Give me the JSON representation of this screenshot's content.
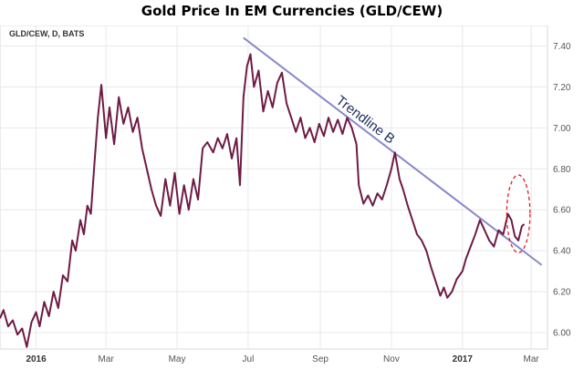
{
  "title": "Gold Price In EM Currencies (GLD/CEW)",
  "symbol_label": "GLD/CEW, D, BATS",
  "colors": {
    "series": "#6e1b45",
    "trendline": "#8888cc",
    "highlight": "#dd2222",
    "grid": "#e8e8e8",
    "axis_text": "#555555"
  },
  "chart_data": {
    "type": "line",
    "title": "Gold Price In EM Currencies (GLD/CEW)",
    "xlabel": "",
    "ylabel": "",
    "ylim": [
      5.92,
      7.5
    ],
    "xlim": [
      "2015-12-01",
      "2017-03-15"
    ],
    "grid": true,
    "y_axis_side": "right",
    "y_ticks": [
      "6.00",
      "6.20",
      "6.40",
      "6.60",
      "6.80",
      "7.00",
      "7.20",
      "7.40"
    ],
    "x_ticks": [
      {
        "label": "2016",
        "date": "2016-01-01",
        "bold": true
      },
      {
        "label": "Mar",
        "date": "2016-03-01",
        "bold": false
      },
      {
        "label": "May",
        "date": "2016-05-01",
        "bold": false
      },
      {
        "label": "Jul",
        "date": "2016-07-01",
        "bold": false
      },
      {
        "label": "Sep",
        "date": "2016-09-01",
        "bold": false
      },
      {
        "label": "Nov",
        "date": "2016-11-01",
        "bold": false
      },
      {
        "label": "2017",
        "date": "2017-01-01",
        "bold": true
      },
      {
        "label": "Mar",
        "date": "2017-03-01",
        "bold": false
      }
    ],
    "series": [
      {
        "points": [
          [
            "2015-12-01",
            6.07
          ],
          [
            "2015-12-04",
            6.11
          ],
          [
            "2015-12-08",
            6.03
          ],
          [
            "2015-12-12",
            6.06
          ],
          [
            "2015-12-16",
            5.99
          ],
          [
            "2015-12-20",
            6.02
          ],
          [
            "2015-12-24",
            5.93
          ],
          [
            "2015-12-28",
            6.05
          ],
          [
            "2016-01-01",
            6.1
          ],
          [
            "2016-01-04",
            6.03
          ],
          [
            "2016-01-08",
            6.15
          ],
          [
            "2016-01-12",
            6.08
          ],
          [
            "2016-01-16",
            6.2
          ],
          [
            "2016-01-20",
            6.12
          ],
          [
            "2016-01-24",
            6.28
          ],
          [
            "2016-01-28",
            6.25
          ],
          [
            "2016-02-01",
            6.45
          ],
          [
            "2016-02-04",
            6.4
          ],
          [
            "2016-02-08",
            6.55
          ],
          [
            "2016-02-11",
            6.48
          ],
          [
            "2016-02-14",
            6.62
          ],
          [
            "2016-02-17",
            6.58
          ],
          [
            "2016-02-20",
            6.82
          ],
          [
            "2016-02-23",
            7.05
          ],
          [
            "2016-02-26",
            7.21
          ],
          [
            "2016-03-01",
            6.95
          ],
          [
            "2016-03-04",
            7.1
          ],
          [
            "2016-03-08",
            6.92
          ],
          [
            "2016-03-12",
            7.15
          ],
          [
            "2016-03-16",
            7.02
          ],
          [
            "2016-03-20",
            7.1
          ],
          [
            "2016-03-24",
            6.98
          ],
          [
            "2016-03-28",
            7.05
          ],
          [
            "2016-04-01",
            6.9
          ],
          [
            "2016-04-05",
            6.8
          ],
          [
            "2016-04-09",
            6.7
          ],
          [
            "2016-04-13",
            6.62
          ],
          [
            "2016-04-17",
            6.57
          ],
          [
            "2016-04-21",
            6.75
          ],
          [
            "2016-04-25",
            6.62
          ],
          [
            "2016-04-29",
            6.78
          ],
          [
            "2016-05-03",
            6.58
          ],
          [
            "2016-05-07",
            6.72
          ],
          [
            "2016-05-11",
            6.6
          ],
          [
            "2016-05-15",
            6.75
          ],
          [
            "2016-05-19",
            6.65
          ],
          [
            "2016-05-23",
            6.9
          ],
          [
            "2016-05-27",
            6.93
          ],
          [
            "2016-06-01",
            6.88
          ],
          [
            "2016-06-05",
            6.95
          ],
          [
            "2016-06-09",
            6.9
          ],
          [
            "2016-06-13",
            6.97
          ],
          [
            "2016-06-17",
            6.85
          ],
          [
            "2016-06-21",
            6.95
          ],
          [
            "2016-06-24",
            6.72
          ],
          [
            "2016-06-27",
            7.15
          ],
          [
            "2016-06-30",
            7.3
          ],
          [
            "2016-07-03",
            7.36
          ],
          [
            "2016-07-06",
            7.2
          ],
          [
            "2016-07-10",
            7.28
          ],
          [
            "2016-07-14",
            7.08
          ],
          [
            "2016-07-18",
            7.18
          ],
          [
            "2016-07-22",
            7.1
          ],
          [
            "2016-07-26",
            7.22
          ],
          [
            "2016-07-30",
            7.27
          ],
          [
            "2016-08-03",
            7.12
          ],
          [
            "2016-08-07",
            7.05
          ],
          [
            "2016-08-11",
            6.98
          ],
          [
            "2016-08-15",
            7.05
          ],
          [
            "2016-08-19",
            6.95
          ],
          [
            "2016-08-23",
            7.0
          ],
          [
            "2016-08-27",
            6.93
          ],
          [
            "2016-08-31",
            7.02
          ],
          [
            "2016-09-04",
            6.96
          ],
          [
            "2016-09-08",
            7.05
          ],
          [
            "2016-09-12",
            6.98
          ],
          [
            "2016-09-16",
            7.04
          ],
          [
            "2016-09-20",
            6.97
          ],
          [
            "2016-09-24",
            7.05
          ],
          [
            "2016-09-28",
            7.0
          ],
          [
            "2016-10-02",
            6.92
          ],
          [
            "2016-10-04",
            6.72
          ],
          [
            "2016-10-08",
            6.63
          ],
          [
            "2016-10-12",
            6.67
          ],
          [
            "2016-10-16",
            6.62
          ],
          [
            "2016-10-20",
            6.68
          ],
          [
            "2016-10-24",
            6.65
          ],
          [
            "2016-10-28",
            6.72
          ],
          [
            "2016-11-01",
            6.8
          ],
          [
            "2016-11-04",
            6.88
          ],
          [
            "2016-11-08",
            6.75
          ],
          [
            "2016-11-11",
            6.7
          ],
          [
            "2016-11-15",
            6.62
          ],
          [
            "2016-11-19",
            6.55
          ],
          [
            "2016-11-23",
            6.48
          ],
          [
            "2016-11-27",
            6.45
          ],
          [
            "2016-12-01",
            6.4
          ],
          [
            "2016-12-05",
            6.32
          ],
          [
            "2016-12-09",
            6.25
          ],
          [
            "2016-12-13",
            6.18
          ],
          [
            "2016-12-16",
            6.22
          ],
          [
            "2016-12-19",
            6.17
          ],
          [
            "2016-12-23",
            6.2
          ],
          [
            "2016-12-27",
            6.26
          ],
          [
            "2017-01-01",
            6.3
          ],
          [
            "2017-01-04",
            6.36
          ],
          [
            "2017-01-08",
            6.42
          ],
          [
            "2017-01-12",
            6.48
          ],
          [
            "2017-01-16",
            6.55
          ],
          [
            "2017-01-20",
            6.5
          ],
          [
            "2017-01-24",
            6.45
          ],
          [
            "2017-01-28",
            6.42
          ],
          [
            "2017-02-01",
            6.5
          ],
          [
            "2017-02-05",
            6.48
          ],
          [
            "2017-02-09",
            6.58
          ],
          [
            "2017-02-12",
            6.55
          ],
          [
            "2017-02-15",
            6.47
          ],
          [
            "2017-02-18",
            6.45
          ],
          [
            "2017-02-21",
            6.52
          ],
          [
            "2017-02-23",
            6.53
          ]
        ]
      }
    ],
    "annotations": [
      {
        "type": "trendline",
        "label": "Trendline B",
        "from": [
          "2016-06-27",
          7.44
        ],
        "to": [
          "2017-03-10",
          6.33
        ]
      },
      {
        "type": "ellipse",
        "label": "",
        "center": [
          "2017-02-18",
          6.58
        ],
        "rx_days": 10,
        "ry_value": 0.19
      }
    ]
  }
}
